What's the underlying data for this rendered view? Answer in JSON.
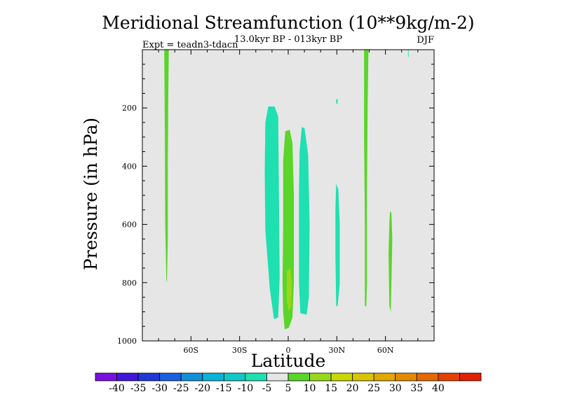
{
  "chart_data": {
    "type": "heatmap",
    "title": "Meridional Streamfunction (10**9kg/m-2)",
    "subtitle": "13.0kyr BP - 013kyr BP",
    "left_label": "Expt = teadn3-tdacn",
    "right_label": "DJF",
    "xlabel": "Latitude",
    "ylabel": "Pressure (in hPa)",
    "xlim": [
      -90,
      90
    ],
    "ylim": [
      0,
      1000
    ],
    "y_inverted": true,
    "x_ticks": [
      {
        "value": -60,
        "label": "60S"
      },
      {
        "value": -30,
        "label": "30S"
      },
      {
        "value": 0,
        "label": "0"
      },
      {
        "value": 30,
        "label": "30N"
      },
      {
        "value": 60,
        "label": "60N"
      }
    ],
    "y_ticks": [
      {
        "value": 200,
        "label": "200"
      },
      {
        "value": 400,
        "label": "400"
      },
      {
        "value": 600,
        "label": "600"
      },
      {
        "value": 800,
        "label": "800"
      },
      {
        "value": 1000,
        "label": "1000"
      }
    ],
    "background_color": "#e6e6e6",
    "contour_regions": [
      {
        "name": "band-70S",
        "range": "5 to 10",
        "color": "#5ad52a",
        "points": [
          [
            -76.5,
            0
          ],
          [
            -73.7,
            0
          ],
          [
            -74.0,
            150
          ],
          [
            -74.3,
            400
          ],
          [
            -74.3,
            650
          ],
          [
            -74.8,
            800
          ],
          [
            -75.2,
            790
          ],
          [
            -75.9,
            600
          ],
          [
            -76.1,
            300
          ]
        ]
      },
      {
        "name": "band-15S",
        "range": "-10 to -5",
        "color": "#1ee0b0",
        "points": [
          [
            -12.3,
            195
          ],
          [
            -8.4,
            195
          ],
          [
            -6.2,
            230
          ],
          [
            -5.7,
            500
          ],
          [
            -5.3,
            780
          ],
          [
            -6.2,
            920
          ],
          [
            -8.8,
            925
          ],
          [
            -11.4,
            820
          ],
          [
            -14.1,
            620
          ],
          [
            -14.5,
            420
          ],
          [
            -14.1,
            250
          ]
        ]
      },
      {
        "name": "band-eq",
        "range": "5 to 10",
        "color": "#5ad52a",
        "points": [
          [
            -1.8,
            280
          ],
          [
            0.9,
            275
          ],
          [
            2.6,
            320
          ],
          [
            3.5,
            500
          ],
          [
            3.5,
            800
          ],
          [
            2.6,
            920
          ],
          [
            0.4,
            955
          ],
          [
            -2.2,
            960
          ],
          [
            -3.1,
            900
          ],
          [
            -3.5,
            800
          ],
          [
            -3.1,
            600
          ],
          [
            -3.1,
            380
          ]
        ]
      },
      {
        "name": "core-eq",
        "range": "10 to 15",
        "color": "#99d818",
        "points": [
          [
            -0.9,
            760
          ],
          [
            1.3,
            750
          ],
          [
            2.2,
            800
          ],
          [
            1.8,
            880
          ],
          [
            0.4,
            900
          ],
          [
            -0.9,
            860
          ]
        ]
      },
      {
        "name": "band-8N",
        "range": "-10 to -5",
        "color": "#1ee0b0",
        "points": [
          [
            8.4,
            265
          ],
          [
            10.1,
            270
          ],
          [
            12.3,
            360
          ],
          [
            13.2,
            600
          ],
          [
            12.7,
            850
          ],
          [
            11.4,
            910
          ],
          [
            7.5,
            905
          ],
          [
            6.6,
            800
          ],
          [
            6.6,
            500
          ],
          [
            7.0,
            350
          ]
        ]
      },
      {
        "name": "band-30N",
        "range": "-10 to -5",
        "color": "#1ee0b0",
        "points": [
          [
            29.6,
            460
          ],
          [
            30.9,
            480
          ],
          [
            31.8,
            600
          ],
          [
            31.8,
            800
          ],
          [
            30.5,
            880
          ],
          [
            29.6,
            880
          ],
          [
            29.1,
            700
          ],
          [
            29.1,
            550
          ]
        ]
      },
      {
        "name": "spot-30N",
        "range": "-10 to -5",
        "color": "#1ee0b0",
        "points": [
          [
            29.6,
            170
          ],
          [
            30.5,
            170
          ],
          [
            30.5,
            185
          ],
          [
            29.6,
            185
          ]
        ]
      },
      {
        "name": "band-47N",
        "range": "5 to 10",
        "color": "#5ad52a",
        "points": [
          [
            46.8,
            0
          ],
          [
            49.5,
            0
          ],
          [
            49.0,
            200
          ],
          [
            48.6,
            500
          ],
          [
            48.6,
            800
          ],
          [
            48.2,
            880
          ],
          [
            47.3,
            880
          ],
          [
            47.3,
            600
          ],
          [
            46.8,
            300
          ]
        ]
      },
      {
        "name": "band-62N",
        "range": "5 to 10",
        "color": "#5ad52a",
        "points": [
          [
            62.8,
            555
          ],
          [
            63.7,
            560
          ],
          [
            64.2,
            650
          ],
          [
            63.7,
            800
          ],
          [
            63.3,
            900
          ],
          [
            62.4,
            880
          ],
          [
            61.9,
            700
          ],
          [
            62.4,
            600
          ]
        ]
      },
      {
        "name": "spot-74N",
        "range": "-10 to -5",
        "color": "#1ee0b0",
        "points": [
          [
            73.9,
            0
          ],
          [
            74.3,
            0
          ],
          [
            74.3,
            25
          ],
          [
            73.9,
            25
          ]
        ]
      }
    ],
    "colorbar": {
      "colors": [
        "#7a10e0",
        "#4018d8",
        "#2038d8",
        "#1860e0",
        "#1090d8",
        "#0ab4d8",
        "#10c8c8",
        "#1ee0b0",
        "#e6e6e6",
        "#5ad52a",
        "#99d818",
        "#c8d800",
        "#d8c400",
        "#e0a800",
        "#e48a00",
        "#e46a00",
        "#e44000",
        "#e02000"
      ],
      "labels": [
        "-40",
        "-35",
        "-30",
        "-25",
        "-20",
        "-15",
        "-10",
        "-5",
        "5",
        "10",
        "15",
        "20",
        "25",
        "30",
        "35",
        "40"
      ]
    }
  }
}
